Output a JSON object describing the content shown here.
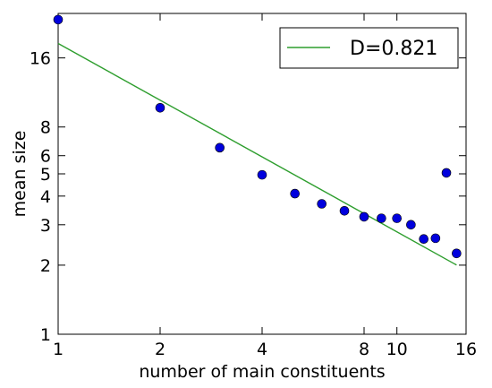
{
  "chart_data": {
    "type": "scatter",
    "xscale": "log",
    "yscale": "log",
    "xlim": [
      1,
      16
    ],
    "ylim": [
      1,
      25
    ],
    "xticks": [
      1,
      2,
      4,
      8,
      10,
      16
    ],
    "xtick_labels": [
      "1",
      "2",
      "4",
      "8",
      "10",
      "16"
    ],
    "yticks": [
      1,
      2,
      3,
      4,
      5,
      6,
      8,
      16
    ],
    "ytick_labels": [
      "1",
      "2",
      "3",
      "4",
      "5",
      "6",
      "8",
      "16"
    ],
    "xlabel": "number of main constituents",
    "ylabel": "mean size",
    "grid": false,
    "legend_position": "top-right",
    "points": {
      "x": [
        1,
        2,
        3,
        4,
        5,
        6,
        7,
        8,
        9,
        10,
        11,
        12,
        13,
        14,
        15
      ],
      "y": [
        23.5,
        9.7,
        6.5,
        4.95,
        4.1,
        3.7,
        3.45,
        3.25,
        3.2,
        3.2,
        3.0,
        2.6,
        2.62,
        5.05,
        2.25
      ],
      "color": "#0000dd"
    },
    "fit_line": {
      "label": "D=0.821",
      "slope": -0.821,
      "intercept_at_x1": 18.5,
      "x_range": [
        1,
        15
      ],
      "color": "#2e9e2e"
    }
  }
}
